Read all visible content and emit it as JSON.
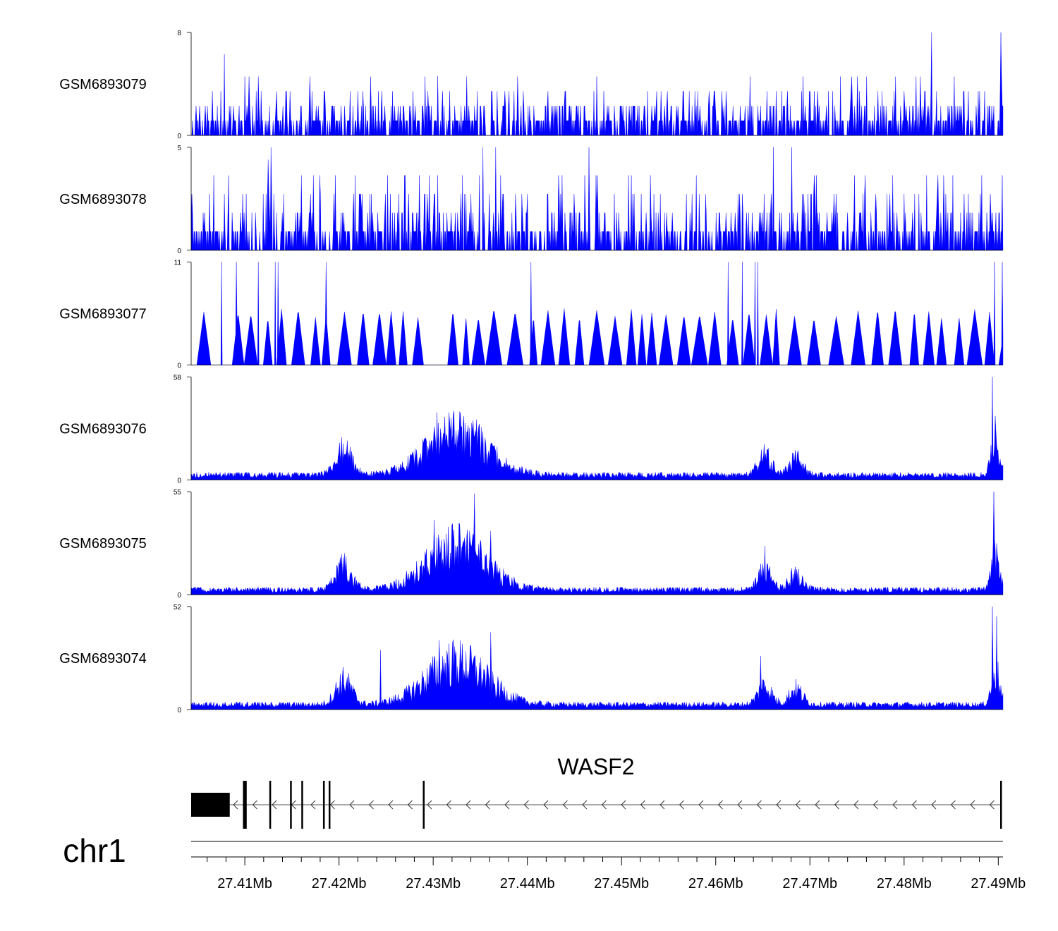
{
  "chart_data": {
    "type": "area",
    "title": "",
    "fill_color": "#0000ff",
    "chromosome": "chr1",
    "x_range_mb": [
      27.4043,
      27.4905
    ],
    "x_ticks": [
      {
        "value": 27.41,
        "label": "27.41Mb"
      },
      {
        "value": 27.42,
        "label": "27.42Mb"
      },
      {
        "value": 27.43,
        "label": "27.43Mb"
      },
      {
        "value": 27.44,
        "label": "27.44Mb"
      },
      {
        "value": 27.45,
        "label": "27.45Mb"
      },
      {
        "value": 27.46,
        "label": "27.46Mb"
      },
      {
        "value": 27.47,
        "label": "27.47Mb"
      },
      {
        "value": 27.48,
        "label": "27.48Mb"
      },
      {
        "value": 27.49,
        "label": "27.49Mb"
      }
    ],
    "tracks": [
      {
        "name": "GSM6893079",
        "ymax": 8,
        "ymax_label": "8",
        "ymin_label": "0",
        "style": "sparse",
        "seed": 79,
        "peaks": [
          [
            27.4078,
            6.3
          ],
          [
            27.4829,
            8.0
          ],
          [
            27.4903,
            8.0
          ],
          [
            27.4305,
            4.6
          ]
        ]
      },
      {
        "name": "GSM6893078",
        "ymax": 5,
        "ymax_label": "5",
        "ymin_label": "0",
        "style": "sparse",
        "seed": 78,
        "peaks": [
          [
            27.4128,
            5.0
          ],
          [
            27.4125,
            4.4
          ],
          [
            27.4353,
            5.0
          ],
          [
            27.4366,
            5.0
          ],
          [
            27.4465,
            5.0
          ],
          [
            27.4661,
            5.0
          ],
          [
            27.4681,
            5.0
          ]
        ]
      },
      {
        "name": "GSM6893077",
        "ymax": 11,
        "ymax_label": "11",
        "ymin_label": "0",
        "style": "triangles",
        "seed": 77,
        "peaks": [
          [
            27.4075,
            11.0
          ],
          [
            27.4091,
            11.0
          ],
          [
            27.4114,
            11.0
          ],
          [
            27.4132,
            11.0
          ],
          [
            27.4135,
            11.0
          ],
          [
            27.4186,
            11.0
          ],
          [
            27.4404,
            11.0
          ],
          [
            27.4613,
            11.0
          ],
          [
            27.4628,
            11.0
          ],
          [
            27.4642,
            11.0
          ],
          [
            27.4645,
            11.0
          ],
          [
            27.4896,
            11.0
          ],
          [
            27.4904,
            11.0
          ]
        ]
      },
      {
        "name": "GSM6893076",
        "ymax": 58,
        "ymax_label": "58",
        "ymin_label": "0",
        "style": "dense",
        "seed": 76,
        "peaks": [
          [
            27.4304,
            38.0
          ],
          [
            27.4346,
            34.0
          ],
          [
            27.4203,
            24.0
          ],
          [
            27.4894,
            58.0
          ],
          [
            27.4897,
            36.0
          ]
        ]
      },
      {
        "name": "GSM6893075",
        "ymax": 55,
        "ymax_label": "55",
        "ymin_label": "0",
        "style": "dense",
        "seed": 75,
        "peaks": [
          [
            27.4344,
            54.0
          ],
          [
            27.4301,
            40.0
          ],
          [
            27.4361,
            34.0
          ],
          [
            27.4895,
            55.0
          ],
          [
            27.4652,
            26.0
          ]
        ]
      },
      {
        "name": "GSM6893074",
        "ymax": 52,
        "ymax_label": "52",
        "ymin_label": "0",
        "style": "dense",
        "seed": 74,
        "peaks": [
          [
            27.4361,
            39.0
          ],
          [
            27.4306,
            35.0
          ],
          [
            27.4244,
            30.0
          ],
          [
            27.4894,
            52.0
          ],
          [
            27.4898,
            47.0
          ],
          [
            27.4648,
            27.0
          ]
        ]
      }
    ],
    "gene": {
      "name": "WASF2",
      "strand": "-",
      "start_mb": 27.4043,
      "end_mb": 27.4903,
      "exons_mb": [
        [
          27.4043,
          27.4084
        ],
        [
          27.4098,
          27.4102
        ],
        [
          27.4126,
          27.4127
        ],
        [
          27.4148,
          27.4149
        ],
        [
          27.416,
          27.4161
        ],
        [
          27.4183,
          27.4184
        ],
        [
          27.4189,
          27.419
        ],
        [
          27.4289,
          27.429
        ],
        [
          27.4902,
          27.4903
        ]
      ]
    }
  }
}
